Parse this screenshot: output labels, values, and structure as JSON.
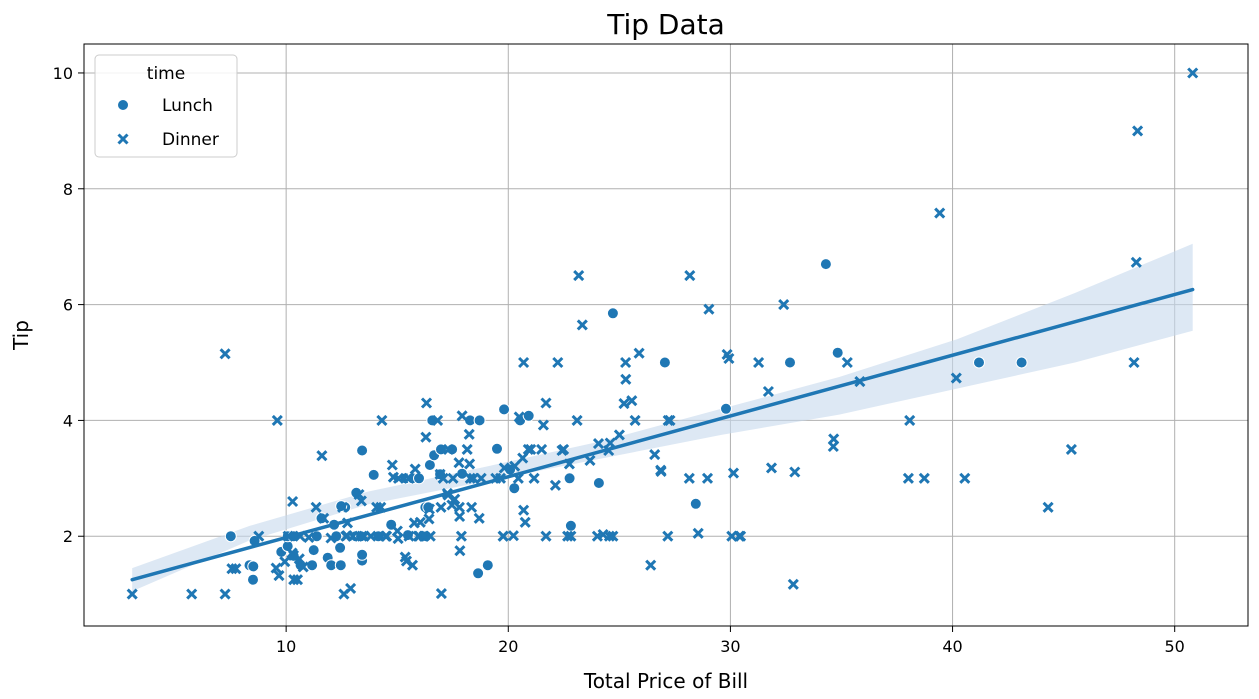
{
  "chart_data": {
    "type": "scatter",
    "title": "Tip Data",
    "xlabel": "Total Price of Bill",
    "ylabel": "Tip",
    "xlim": [
      0.9,
      53.3
    ],
    "ylim": [
      0.45,
      10.5
    ],
    "xticks": [
      10,
      20,
      30,
      40,
      50
    ],
    "yticks": [
      2,
      4,
      6,
      8,
      10
    ],
    "grid": true,
    "legend": {
      "title": "time",
      "placement": "top-left",
      "entries": [
        {
          "label": "Lunch",
          "marker": "circle"
        },
        {
          "label": "Dinner",
          "marker": "x"
        }
      ]
    },
    "marker_color": "#1f77b4",
    "regression": {
      "x": [
        3.07,
        50.81
      ],
      "y": [
        1.25,
        6.26
      ],
      "ci_color": "#c6d9ec",
      "ci_lower": [
        1.05,
        1.93,
        2.55,
        2.95,
        3.35,
        3.75,
        4.1,
        4.55,
        5.0,
        5.55
      ],
      "ci_upper": [
        1.45,
        2.18,
        2.77,
        3.2,
        3.65,
        4.2,
        4.75,
        5.4,
        6.2,
        7.05
      ]
    },
    "series": [
      {
        "name": "Lunch",
        "marker": "circle",
        "points": [
          [
            7.51,
            2.0
          ],
          [
            8.35,
            1.5
          ],
          [
            8.52,
            1.48
          ],
          [
            8.58,
            1.92
          ],
          [
            8.51,
            1.25
          ],
          [
            9.78,
            1.73
          ],
          [
            10.07,
            1.83
          ],
          [
            10.07,
            2.0
          ],
          [
            10.34,
            2.0
          ],
          [
            10.65,
            1.5
          ],
          [
            11.17,
            1.5
          ],
          [
            11.87,
            1.63
          ],
          [
            12.03,
            1.5
          ],
          [
            12.16,
            2.2
          ],
          [
            12.43,
            1.8
          ],
          [
            12.46,
            1.5
          ],
          [
            12.66,
            2.5
          ],
          [
            13.0,
            2.0
          ],
          [
            13.03,
            2.0
          ],
          [
            13.13,
            2.0
          ],
          [
            13.16,
            2.75
          ],
          [
            13.42,
            1.58
          ],
          [
            13.42,
            3.48
          ],
          [
            13.42,
            1.68
          ],
          [
            13.94,
            3.06
          ],
          [
            15.38,
            3.0
          ],
          [
            15.48,
            2.02
          ],
          [
            15.69,
            3.0
          ],
          [
            15.98,
            3.0
          ],
          [
            16.27,
            2.5
          ],
          [
            16.31,
            2.0
          ],
          [
            16.4,
            2.5
          ],
          [
            16.47,
            3.23
          ],
          [
            16.66,
            3.4
          ],
          [
            16.93,
            3.07
          ],
          [
            16.97,
            3.5
          ],
          [
            17.47,
            3.5
          ],
          [
            17.92,
            3.08
          ],
          [
            18.28,
            4.0
          ],
          [
            18.71,
            4.0
          ],
          [
            18.64,
            1.36
          ],
          [
            19.08,
            1.5
          ],
          [
            19.49,
            3.51
          ],
          [
            19.81,
            4.19
          ],
          [
            20.08,
            3.15
          ],
          [
            20.27,
            2.83
          ],
          [
            20.53,
            4.0
          ],
          [
            20.92,
            4.08
          ],
          [
            22.76,
            3.0
          ],
          [
            22.82,
            2.18
          ],
          [
            24.08,
            2.92
          ],
          [
            24.71,
            5.85
          ],
          [
            27.05,
            5.0
          ],
          [
            28.44,
            2.56
          ],
          [
            29.8,
            4.2
          ],
          [
            32.68,
            5.0
          ],
          [
            34.3,
            6.7
          ],
          [
            34.83,
            5.17
          ],
          [
            41.19,
            5.0
          ],
          [
            43.11,
            5.0
          ],
          [
            11.24,
            1.76
          ],
          [
            11.38,
            2.0
          ],
          [
            12.48,
            2.52
          ],
          [
            14.73,
            2.2
          ],
          [
            16.58,
            4.0
          ],
          [
            12.26,
            2.0
          ],
          [
            11.59,
            2.31
          ],
          [
            13.37,
            2.0
          ],
          [
            14.15,
            2.0
          ],
          [
            10.34,
            1.66
          ]
        ]
      },
      {
        "name": "Dinner",
        "marker": "x",
        "points": [
          [
            3.07,
            1.0
          ],
          [
            5.75,
            1.0
          ],
          [
            7.25,
            1.0
          ],
          [
            7.25,
            5.15
          ],
          [
            7.56,
            1.44
          ],
          [
            7.74,
            1.44
          ],
          [
            8.77,
            2.0
          ],
          [
            9.55,
            1.45
          ],
          [
            9.6,
            4.0
          ],
          [
            9.68,
            1.32
          ],
          [
            9.94,
            1.56
          ],
          [
            10.09,
            2.0
          ],
          [
            10.27,
            1.71
          ],
          [
            10.29,
            2.6
          ],
          [
            10.33,
            1.67
          ],
          [
            10.51,
            1.25
          ],
          [
            10.59,
            1.61
          ],
          [
            10.63,
            2.0
          ],
          [
            10.77,
            1.47
          ],
          [
            10.34,
            1.25
          ],
          [
            11.02,
            1.98
          ],
          [
            11.35,
            2.5
          ],
          [
            11.61,
            3.39
          ],
          [
            11.69,
            2.31
          ],
          [
            12.02,
            1.97
          ],
          [
            12.54,
            2.5
          ],
          [
            12.6,
            1.0
          ],
          [
            12.69,
            2.0
          ],
          [
            12.74,
            2.01
          ],
          [
            12.9,
            1.1
          ],
          [
            13.28,
            2.72
          ],
          [
            13.39,
            2.61
          ],
          [
            13.51,
            2.0
          ],
          [
            13.81,
            2.0
          ],
          [
            14.07,
            2.5
          ],
          [
            14.26,
            2.5
          ],
          [
            14.31,
            4.0
          ],
          [
            14.48,
            2.0
          ],
          [
            14.52,
            2.0
          ],
          [
            14.78,
            3.23
          ],
          [
            15.01,
            2.09
          ],
          [
            15.04,
            1.96
          ],
          [
            15.06,
            3.0
          ],
          [
            15.36,
            1.64
          ],
          [
            15.42,
            1.57
          ],
          [
            15.53,
            3.0
          ],
          [
            15.77,
            2.23
          ],
          [
            15.81,
            3.16
          ],
          [
            15.95,
            2.0
          ],
          [
            16.0,
            2.0
          ],
          [
            16.04,
            2.24
          ],
          [
            16.21,
            2.0
          ],
          [
            16.29,
            3.71
          ],
          [
            16.32,
            4.3
          ],
          [
            16.43,
            2.3
          ],
          [
            16.45,
            2.47
          ],
          [
            16.49,
            2.0
          ],
          [
            16.82,
            4.0
          ],
          [
            16.93,
            3.07
          ],
          [
            16.99,
            1.01
          ],
          [
            17.07,
            3.0
          ],
          [
            17.26,
            2.74
          ],
          [
            17.29,
            2.71
          ],
          [
            17.31,
            3.5
          ],
          [
            17.46,
            2.54
          ],
          [
            17.51,
            3.0
          ],
          [
            17.59,
            2.64
          ],
          [
            17.78,
            3.27
          ],
          [
            17.81,
            2.34
          ],
          [
            17.82,
            1.75
          ],
          [
            17.89,
            2.0
          ],
          [
            17.92,
            4.08
          ],
          [
            18.15,
            3.5
          ],
          [
            18.24,
            3.76
          ],
          [
            18.26,
            3.25
          ],
          [
            18.29,
            3.0
          ],
          [
            18.35,
            2.5
          ],
          [
            18.43,
            3.0
          ],
          [
            18.69,
            2.31
          ],
          [
            18.78,
            3.0
          ],
          [
            19.44,
            3.0
          ],
          [
            19.65,
            3.0
          ],
          [
            19.77,
            2.0
          ],
          [
            19.82,
            3.18
          ],
          [
            20.23,
            2.01
          ],
          [
            20.29,
            3.21
          ],
          [
            20.45,
            3.0
          ],
          [
            20.65,
            3.35
          ],
          [
            20.69,
            5.0
          ],
          [
            20.69,
            2.45
          ],
          [
            20.76,
            2.24
          ],
          [
            20.9,
            3.5
          ],
          [
            21.01,
            3.5
          ],
          [
            21.16,
            3.0
          ],
          [
            21.5,
            3.5
          ],
          [
            21.58,
            3.92
          ],
          [
            21.7,
            4.3
          ],
          [
            22.12,
            2.88
          ],
          [
            22.23,
            5.0
          ],
          [
            22.42,
            3.48
          ],
          [
            22.49,
            3.5
          ],
          [
            22.67,
            2.0
          ],
          [
            22.75,
            3.25
          ],
          [
            23.1,
            4.0
          ],
          [
            23.17,
            6.5
          ],
          [
            23.33,
            5.65
          ],
          [
            23.68,
            3.31
          ],
          [
            24.01,
            2.0
          ],
          [
            24.06,
            3.6
          ],
          [
            24.27,
            2.03
          ],
          [
            24.52,
            3.48
          ],
          [
            24.55,
            2.0
          ],
          [
            24.59,
            3.61
          ],
          [
            25.0,
            3.75
          ],
          [
            25.21,
            4.29
          ],
          [
            25.28,
            5.0
          ],
          [
            25.29,
            4.71
          ],
          [
            25.56,
            4.34
          ],
          [
            25.71,
            4.0
          ],
          [
            25.89,
            5.16
          ],
          [
            26.41,
            1.5
          ],
          [
            26.59,
            3.41
          ],
          [
            26.86,
            3.14
          ],
          [
            26.88,
            3.12
          ],
          [
            27.18,
            2.0
          ],
          [
            27.2,
            4.0
          ],
          [
            27.28,
            4.0
          ],
          [
            28.15,
            3.0
          ],
          [
            28.17,
            6.5
          ],
          [
            28.55,
            2.05
          ],
          [
            28.97,
            3.0
          ],
          [
            29.03,
            5.92
          ],
          [
            29.85,
            5.14
          ],
          [
            29.93,
            5.07
          ],
          [
            30.06,
            2.0
          ],
          [
            30.14,
            3.09
          ],
          [
            30.4,
            2.0
          ],
          [
            30.46,
            2.0
          ],
          [
            31.27,
            5.0
          ],
          [
            31.71,
            4.5
          ],
          [
            31.85,
            3.18
          ],
          [
            32.4,
            6.0
          ],
          [
            32.83,
            1.17
          ],
          [
            32.9,
            3.11
          ],
          [
            34.63,
            3.55
          ],
          [
            34.65,
            3.68
          ],
          [
            35.26,
            5.0
          ],
          [
            35.83,
            4.67
          ],
          [
            38.01,
            3.0
          ],
          [
            38.07,
            4.0
          ],
          [
            38.73,
            3.0
          ],
          [
            39.42,
            7.58
          ],
          [
            40.17,
            4.73
          ],
          [
            40.55,
            3.0
          ],
          [
            44.3,
            2.5
          ],
          [
            45.35,
            3.5
          ],
          [
            48.17,
            5.0
          ],
          [
            48.27,
            6.73
          ],
          [
            48.33,
            9.0
          ],
          [
            50.81,
            10.0
          ],
          [
            14.83,
            3.02
          ],
          [
            15.69,
            1.5
          ],
          [
            20.49,
            4.06
          ],
          [
            13.42,
            2.0
          ],
          [
            17.8,
            2.5
          ],
          [
            12.76,
            2.23
          ],
          [
            19.77,
            2.0
          ],
          [
            24.71,
            2.0
          ],
          [
            21.7,
            2.0
          ],
          [
            15.53,
            2.0
          ],
          [
            13.0,
            2.0
          ],
          [
            16.97,
            2.5
          ],
          [
            14.48,
            2.0
          ],
          [
            22.82,
            2.0
          ]
        ]
      }
    ]
  }
}
